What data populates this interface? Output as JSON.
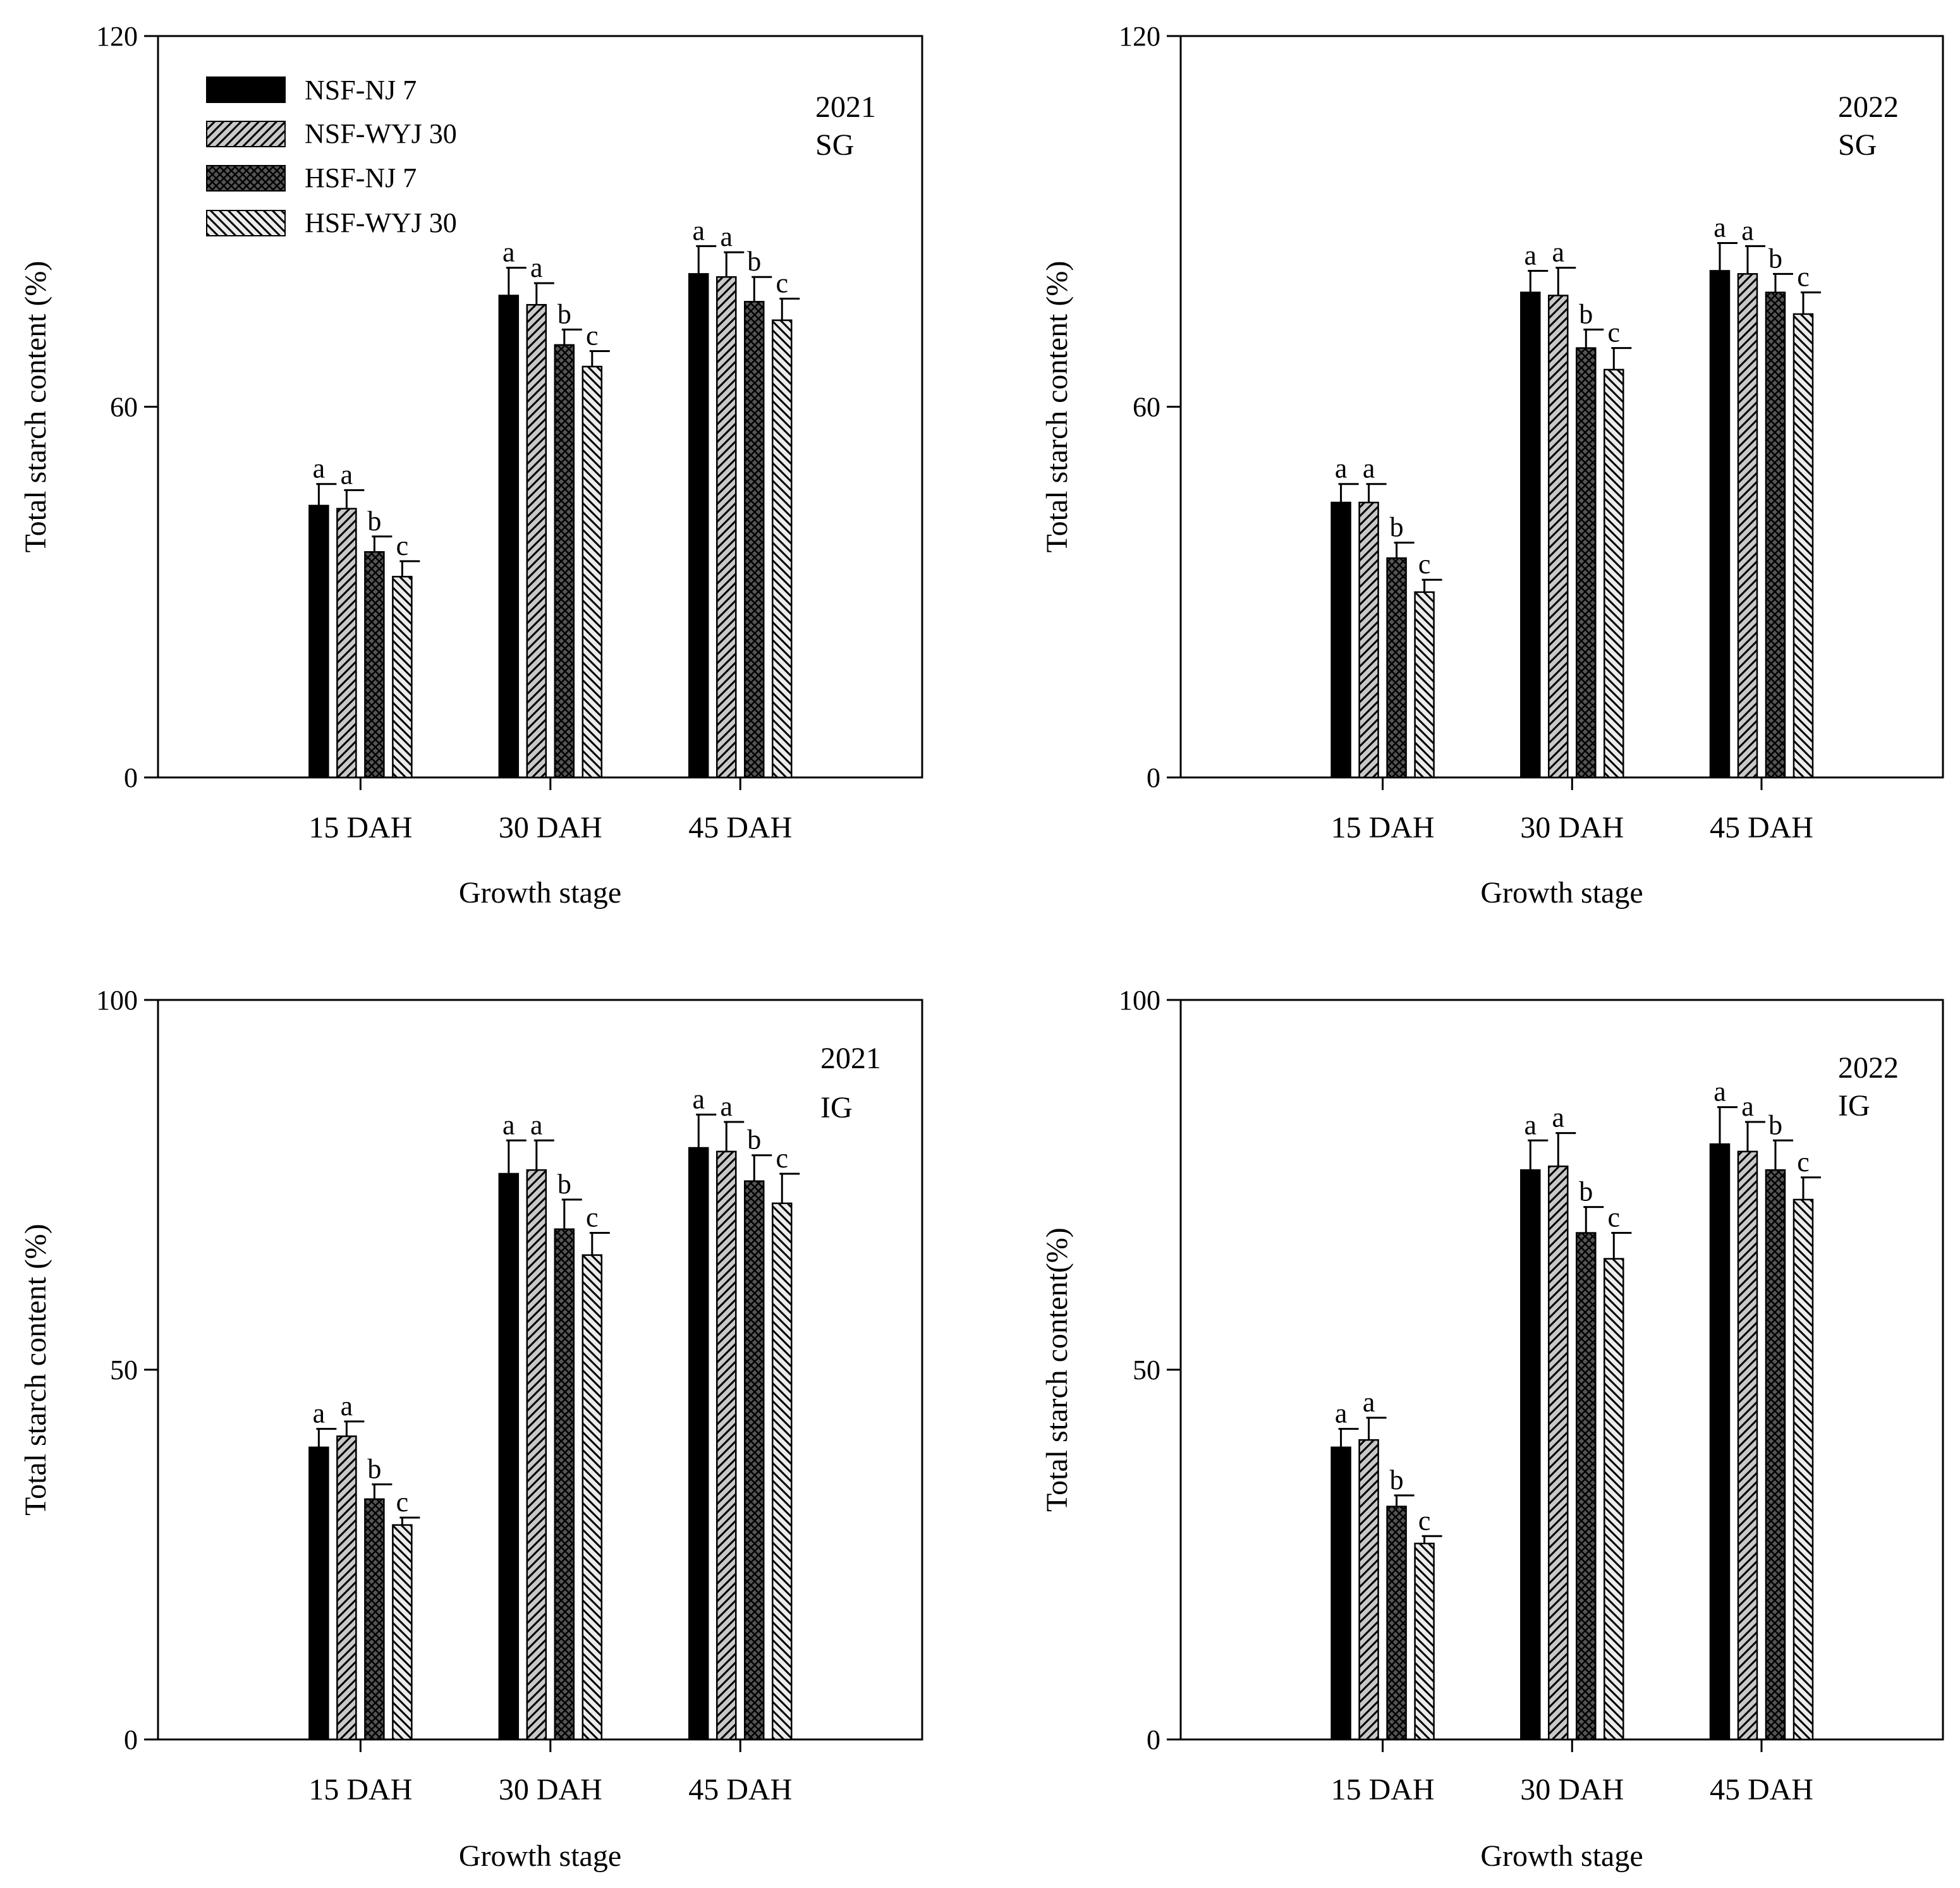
{
  "legend": [
    {
      "name": "NSF-NJ 7",
      "pattern": "solid"
    },
    {
      "name": "NSF-WYJ 30",
      "pattern": "diag-fwd"
    },
    {
      "name": "HSF-NJ 7",
      "pattern": "crosshatch"
    },
    {
      "name": "HSF-WYJ 30",
      "pattern": "diag-back"
    }
  ],
  "chart_data": [
    {
      "type": "bar",
      "panel": "top-left",
      "annotation": [
        "2021",
        "SG"
      ],
      "xlabel": "Growth stage",
      "ylabel": "Total starch content (%)",
      "ylim": [
        0,
        120
      ],
      "yticks": [
        0,
        60,
        120
      ],
      "categories": [
        "15 DAH",
        "30 DAH",
        "45 DAH"
      ],
      "series": [
        {
          "name": "NSF-NJ 7",
          "values": [
            44,
            78,
            81.5
          ],
          "errors": [
            3.5,
            4.5,
            4.5
          ],
          "letters": [
            "a",
            "a",
            "a"
          ]
        },
        {
          "name": "NSF-WYJ 30",
          "values": [
            43.5,
            76.5,
            81
          ],
          "errors": [
            3,
            3.5,
            4
          ],
          "letters": [
            "a",
            "a",
            "a"
          ]
        },
        {
          "name": "HSF-NJ 7",
          "values": [
            36.5,
            70,
            77
          ],
          "errors": [
            2.5,
            2.5,
            4
          ],
          "letters": [
            "b",
            "b",
            "b"
          ]
        },
        {
          "name": "HSF-WYJ 30",
          "values": [
            32.5,
            66.5,
            74
          ],
          "errors": [
            2.5,
            2.5,
            3.5
          ],
          "letters": [
            "c",
            "c",
            "c"
          ]
        }
      ]
    },
    {
      "type": "bar",
      "panel": "top-right",
      "annotation": [
        "2022",
        "SG"
      ],
      "xlabel": "Growth stage",
      "ylabel": "Total starch content (%)",
      "ylim": [
        0,
        120
      ],
      "yticks": [
        0,
        60,
        120
      ],
      "categories": [
        "15 DAH",
        "30 DAH",
        "45 DAH"
      ],
      "series": [
        {
          "name": "NSF-NJ 7",
          "values": [
            44.5,
            78.5,
            82
          ],
          "errors": [
            3,
            3.5,
            4.5
          ],
          "letters": [
            "a",
            "a",
            "a"
          ]
        },
        {
          "name": "NSF-WYJ 30",
          "values": [
            44.5,
            78,
            81.5
          ],
          "errors": [
            3,
            4.5,
            4.5
          ],
          "letters": [
            "a",
            "a",
            "a"
          ]
        },
        {
          "name": "HSF-NJ 7",
          "values": [
            35.5,
            69.5,
            78.5
          ],
          "errors": [
            2.5,
            3,
            3
          ],
          "letters": [
            "b",
            "b",
            "b"
          ]
        },
        {
          "name": "HSF-WYJ 30",
          "values": [
            30,
            66,
            75
          ],
          "errors": [
            2,
            3.5,
            3.5
          ],
          "letters": [
            "c",
            "c",
            "c"
          ]
        }
      ]
    },
    {
      "type": "bar",
      "panel": "bottom-left",
      "annotation": [
        "2021",
        "IG"
      ],
      "xlabel": "Growth stage",
      "ylabel": "Total starch content (%)",
      "ylim": [
        0,
        100
      ],
      "yticks": [
        0,
        50,
        100
      ],
      "categories": [
        "15 DAH",
        "30 DAH",
        "45 DAH"
      ],
      "series": [
        {
          "name": "NSF-NJ 7",
          "values": [
            39.5,
            76.5,
            80
          ],
          "errors": [
            2.5,
            4.5,
            4.5
          ],
          "letters": [
            "a",
            "a",
            "a"
          ]
        },
        {
          "name": "NSF-WYJ 30",
          "values": [
            41,
            77,
            79.5
          ],
          "errors": [
            2,
            4,
            4
          ],
          "letters": [
            "a",
            "a",
            "a"
          ]
        },
        {
          "name": "HSF-NJ 7",
          "values": [
            32.5,
            69,
            75.5
          ],
          "errors": [
            2,
            4,
            3.5
          ],
          "letters": [
            "b",
            "b",
            "b"
          ]
        },
        {
          "name": "HSF-WYJ 30",
          "values": [
            29,
            65.5,
            72.5
          ],
          "errors": [
            1,
            3,
            4
          ],
          "letters": [
            "c",
            "c",
            "c"
          ]
        }
      ]
    },
    {
      "type": "bar",
      "panel": "bottom-right",
      "annotation": [
        "2022",
        "IG"
      ],
      "xlabel": "Growth stage",
      "ylabel": "Total starch content(%)",
      "ylim": [
        0,
        100
      ],
      "yticks": [
        0,
        50,
        100
      ],
      "categories": [
        "15 DAH",
        "30 DAH",
        "45 DAH"
      ],
      "series": [
        {
          "name": "NSF-NJ 7",
          "values": [
            39.5,
            77,
            80.5
          ],
          "errors": [
            2.5,
            4,
            5
          ],
          "letters": [
            "a",
            "a",
            "a"
          ]
        },
        {
          "name": "NSF-WYJ 30",
          "values": [
            40.5,
            77.5,
            79.5
          ],
          "errors": [
            3,
            4.5,
            4
          ],
          "letters": [
            "a",
            "a",
            "a"
          ]
        },
        {
          "name": "HSF-NJ 7",
          "values": [
            31.5,
            68.5,
            77
          ],
          "errors": [
            1.5,
            3.5,
            4
          ],
          "letters": [
            "b",
            "b",
            "b"
          ]
        },
        {
          "name": "HSF-WYJ 30",
          "values": [
            26.5,
            65,
            73
          ],
          "errors": [
            1,
            3.5,
            3
          ],
          "letters": [
            "c",
            "c",
            "c"
          ]
        }
      ]
    }
  ]
}
